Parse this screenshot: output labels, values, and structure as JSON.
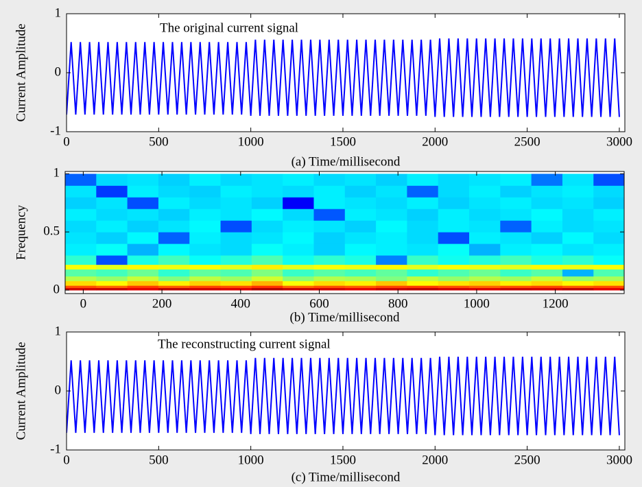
{
  "chart_data": [
    {
      "type": "line",
      "annotation": "The original current signal",
      "xlabel": "(a) Time/millisecond",
      "ylabel": "Current Amplitude",
      "xlim": [
        0,
        3030
      ],
      "ylim": [
        -1,
        1
      ],
      "xticks": [
        0,
        500,
        1000,
        1500,
        2000,
        2500,
        3000
      ],
      "yticks": [
        -1,
        0,
        1
      ],
      "x": [
        0,
        25,
        50,
        75,
        100,
        125,
        150,
        175,
        200,
        225,
        250,
        275,
        300,
        325,
        350,
        375,
        400,
        425,
        450,
        475,
        500,
        525,
        550,
        575,
        600,
        625,
        650,
        675,
        700,
        725,
        750,
        775,
        800,
        825,
        850,
        875,
        900,
        925,
        950,
        975,
        1000,
        1025,
        1050,
        1075,
        1100,
        1125,
        1150,
        1175,
        1200,
        1225,
        1250,
        1275,
        1300,
        1325,
        1350,
        1375,
        1400,
        1425,
        1450,
        1475,
        1500,
        1525,
        1550,
        1575,
        1600,
        1625,
        1650,
        1675,
        1700,
        1725,
        1750,
        1775,
        1800,
        1825,
        1850,
        1875,
        1900,
        1925,
        1950,
        1975,
        2000,
        2025,
        2050,
        2075,
        2100,
        2125,
        2150,
        2175,
        2200,
        2225,
        2250,
        2275,
        2300,
        2325,
        2350,
        2375,
        2400,
        2425,
        2450,
        2475,
        2500,
        2525,
        2550,
        2575,
        2600,
        2625,
        2650,
        2675,
        2700,
        2725,
        2750,
        2775,
        2800,
        2825,
        2850,
        2875,
        2900,
        2925,
        2950,
        2975,
        3000
      ],
      "series": [
        {
          "color": "#0000ff",
          "values": [
            -0.71,
            0.52,
            -0.71,
            0.52,
            -0.71,
            0.52,
            -0.71,
            0.52,
            -0.71,
            0.52,
            -0.71,
            0.52,
            -0.71,
            0.52,
            -0.71,
            0.52,
            -0.71,
            0.52,
            -0.71,
            0.52,
            -0.71,
            0.52,
            -0.71,
            0.52,
            -0.71,
            0.52,
            -0.71,
            0.52,
            -0.71,
            0.52,
            -0.71,
            0.52,
            -0.71,
            0.52,
            -0.71,
            0.52,
            -0.71,
            0.52,
            -0.71,
            0.52,
            -0.73,
            0.56,
            -0.73,
            0.56,
            -0.73,
            0.56,
            -0.73,
            0.56,
            -0.73,
            0.56,
            -0.73,
            0.56,
            -0.73,
            0.56,
            -0.73,
            0.56,
            -0.73,
            0.56,
            -0.73,
            0.56,
            -0.73,
            0.56,
            -0.73,
            0.56,
            -0.73,
            0.56,
            -0.73,
            0.56,
            -0.73,
            0.56,
            -0.73,
            0.56,
            -0.73,
            0.56,
            -0.73,
            0.56,
            -0.73,
            0.56,
            -0.73,
            0.56,
            -0.75,
            0.58,
            -0.75,
            0.58,
            -0.75,
            0.58,
            -0.75,
            0.58,
            -0.75,
            0.58,
            -0.75,
            0.58,
            -0.75,
            0.58,
            -0.75,
            0.58,
            -0.75,
            0.58,
            -0.75,
            0.58,
            -0.75,
            0.58,
            -0.75,
            0.58,
            -0.75,
            0.58,
            -0.75,
            0.58,
            -0.75,
            0.58,
            -0.75,
            0.58,
            -0.75,
            0.58,
            -0.75,
            0.58,
            -0.75,
            0.58,
            -0.75,
            0.58,
            -0.75
          ]
        }
      ]
    },
    {
      "type": "heatmap",
      "xlabel": "(b) Time/millisecond",
      "ylabel": "Frequency",
      "colormap": "jet",
      "xlim": [
        -46,
        1375
      ],
      "ylim": [
        -0.03,
        1.02
      ],
      "xticks": [
        0,
        200,
        400,
        600,
        800,
        1000,
        1200
      ],
      "yticks": [
        0,
        0.5,
        1
      ],
      "x_edges": [
        -46,
        33,
        112,
        191,
        270,
        349,
        428,
        507,
        586,
        665,
        744,
        823,
        902,
        981,
        1060,
        1139,
        1218,
        1297,
        1375
      ],
      "y_edges": [
        0,
        0.02,
        0.04,
        0.08,
        0.12,
        0.18,
        0.22,
        0.3,
        0.4,
        0.5,
        0.6,
        0.7,
        0.8,
        0.9,
        1.0
      ],
      "z": [
        [
          0.92,
          0.93,
          0.9,
          0.94,
          0.92,
          0.91,
          0.95,
          0.93,
          0.92,
          0.9,
          0.93,
          0.94,
          0.92,
          0.91,
          0.93,
          0.92,
          0.94,
          0.9
        ],
        [
          0.8,
          0.78,
          0.82,
          0.79,
          0.81,
          0.8,
          0.83,
          0.78,
          0.8,
          0.79,
          0.81,
          0.82,
          0.8,
          0.78,
          0.8,
          0.81,
          0.79,
          0.8
        ],
        [
          0.66,
          0.63,
          0.68,
          0.64,
          0.67,
          0.65,
          0.7,
          0.62,
          0.66,
          0.64,
          0.68,
          0.63,
          0.65,
          0.67,
          0.64,
          0.66,
          0.63,
          0.65
        ],
        [
          0.55,
          0.52,
          0.57,
          0.5,
          0.56,
          0.53,
          0.58,
          0.51,
          0.55,
          0.54,
          0.5,
          0.56,
          0.52,
          0.55,
          0.53,
          0.57,
          0.52,
          0.54
        ],
        [
          0.46,
          0.44,
          0.48,
          0.42,
          0.47,
          0.45,
          0.5,
          0.43,
          0.46,
          0.44,
          0.47,
          0.42,
          0.45,
          0.48,
          0.43,
          0.46,
          0.3,
          0.45
        ],
        [
          0.62,
          0.6,
          0.63,
          0.61,
          0.62,
          0.6,
          0.64,
          0.6,
          0.62,
          0.61,
          0.63,
          0.6,
          0.62,
          0.61,
          0.6,
          0.63,
          0.61,
          0.62
        ],
        [
          0.42,
          0.2,
          0.4,
          0.44,
          0.38,
          0.41,
          0.45,
          0.39,
          0.42,
          0.4,
          0.25,
          0.43,
          0.39,
          0.41,
          0.44,
          0.4,
          0.42,
          0.38
        ],
        [
          0.36,
          0.38,
          0.3,
          0.37,
          0.35,
          0.34,
          0.38,
          0.36,
          0.33,
          0.37,
          0.36,
          0.35,
          0.38,
          0.3,
          0.36,
          0.37,
          0.35,
          0.36
        ],
        [
          0.35,
          0.33,
          0.37,
          0.22,
          0.36,
          0.34,
          0.35,
          0.37,
          0.33,
          0.35,
          0.36,
          0.34,
          0.2,
          0.36,
          0.35,
          0.33,
          0.37,
          0.34
        ],
        [
          0.34,
          0.36,
          0.33,
          0.35,
          0.37,
          0.2,
          0.34,
          0.36,
          0.35,
          0.33,
          0.37,
          0.34,
          0.36,
          0.35,
          0.22,
          0.36,
          0.34,
          0.35
        ],
        [
          0.36,
          0.34,
          0.35,
          0.33,
          0.36,
          0.35,
          0.37,
          0.34,
          0.21,
          0.36,
          0.35,
          0.33,
          0.36,
          0.34,
          0.35,
          0.37,
          0.34,
          0.36
        ],
        [
          0.33,
          0.35,
          0.2,
          0.36,
          0.34,
          0.35,
          0.33,
          0.12,
          0.36,
          0.35,
          0.34,
          0.36,
          0.33,
          0.35,
          0.36,
          0.34,
          0.35,
          0.33
        ],
        [
          0.35,
          0.18,
          0.36,
          0.34,
          0.33,
          0.36,
          0.35,
          0.34,
          0.36,
          0.33,
          0.35,
          0.22,
          0.34,
          0.36,
          0.33,
          0.35,
          0.36,
          0.34
        ],
        [
          0.22,
          0.34,
          0.35,
          0.33,
          0.36,
          0.34,
          0.35,
          0.36,
          0.34,
          0.35,
          0.33,
          0.36,
          0.34,
          0.35,
          0.36,
          0.24,
          0.35,
          0.2
        ]
      ]
    },
    {
      "type": "line",
      "annotation": "The reconstructing current signal",
      "xlabel": "(c) Time/millisecond",
      "ylabel": "Current Amplitude",
      "xlim": [
        0,
        3030
      ],
      "ylim": [
        -1,
        1
      ],
      "xticks": [
        0,
        500,
        1000,
        1500,
        2000,
        2500,
        3000
      ],
      "yticks": [
        -1,
        0,
        1
      ],
      "x": [
        0,
        25,
        50,
        75,
        100,
        125,
        150,
        175,
        200,
        225,
        250,
        275,
        300,
        325,
        350,
        375,
        400,
        425,
        450,
        475,
        500,
        525,
        550,
        575,
        600,
        625,
        650,
        675,
        700,
        725,
        750,
        775,
        800,
        825,
        850,
        875,
        900,
        925,
        950,
        975,
        1000,
        1025,
        1050,
        1075,
        1100,
        1125,
        1150,
        1175,
        1200,
        1225,
        1250,
        1275,
        1300,
        1325,
        1350,
        1375,
        1400,
        1425,
        1450,
        1475,
        1500,
        1525,
        1550,
        1575,
        1600,
        1625,
        1650,
        1675,
        1700,
        1725,
        1750,
        1775,
        1800,
        1825,
        1850,
        1875,
        1900,
        1925,
        1950,
        1975,
        2000,
        2025,
        2050,
        2075,
        2100,
        2125,
        2150,
        2175,
        2200,
        2225,
        2250,
        2275,
        2300,
        2325,
        2350,
        2375,
        2400,
        2425,
        2450,
        2475,
        2500,
        2525,
        2550,
        2575,
        2600,
        2625,
        2650,
        2675,
        2700,
        2725,
        2750,
        2775,
        2800,
        2825,
        2850,
        2875,
        2900,
        2925,
        2950,
        2975,
        3000
      ],
      "series": [
        {
          "color": "#0000ff",
          "values": [
            -0.71,
            0.52,
            -0.71,
            0.52,
            -0.71,
            0.52,
            -0.71,
            0.52,
            -0.71,
            0.52,
            -0.71,
            0.52,
            -0.71,
            0.52,
            -0.71,
            0.52,
            -0.71,
            0.52,
            -0.71,
            0.52,
            -0.71,
            0.52,
            -0.71,
            0.52,
            -0.71,
            0.52,
            -0.71,
            0.52,
            -0.71,
            0.52,
            -0.71,
            0.52,
            -0.71,
            0.52,
            -0.71,
            0.52,
            -0.71,
            0.52,
            -0.71,
            0.52,
            -0.73,
            0.56,
            -0.73,
            0.56,
            -0.73,
            0.56,
            -0.73,
            0.56,
            -0.73,
            0.56,
            -0.73,
            0.56,
            -0.73,
            0.56,
            -0.73,
            0.56,
            -0.73,
            0.56,
            -0.73,
            0.56,
            -0.73,
            0.56,
            -0.73,
            0.56,
            -0.73,
            0.56,
            -0.73,
            0.56,
            -0.73,
            0.56,
            -0.73,
            0.56,
            -0.73,
            0.56,
            -0.73,
            0.56,
            -0.73,
            0.56,
            -0.73,
            0.56,
            -0.75,
            0.58,
            -0.75,
            0.58,
            -0.75,
            0.58,
            -0.75,
            0.58,
            -0.75,
            0.58,
            -0.75,
            0.58,
            -0.75,
            0.58,
            -0.75,
            0.58,
            -0.75,
            0.58,
            -0.75,
            0.58,
            -0.75,
            0.58,
            -0.75,
            0.58,
            -0.75,
            0.58,
            -0.75,
            0.58,
            -0.75,
            0.58,
            -0.75,
            0.58,
            -0.75,
            0.58,
            -0.75,
            0.58,
            -0.75,
            0.58,
            -0.75,
            0.58,
            -0.75
          ]
        }
      ]
    }
  ]
}
